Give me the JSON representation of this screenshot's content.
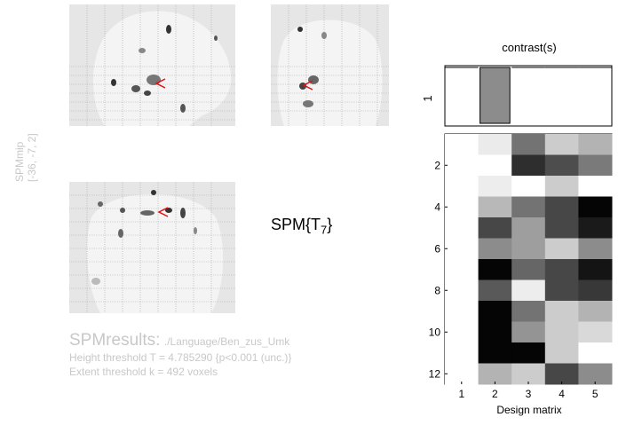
{
  "mip": {
    "side_label": "SPMmip",
    "coords_label": "[-36, -7, 2]"
  },
  "stat_label": {
    "prefix": "SPM{T",
    "subscript": "7",
    "suffix": "}"
  },
  "results": {
    "title": "SPMresults:",
    "path": "./Language/Ben_zus_Umk",
    "height_threshold": "Height threshold T = 4.785290  {p<0.001 (unc.)}",
    "extent_threshold": "Extent threshold k = 492 voxels"
  },
  "contrast": {
    "title": "contrast(s)",
    "row_label": "1",
    "weights": [
      0,
      -1,
      0,
      0,
      0
    ]
  },
  "design_matrix": {
    "xlabel": "Design matrix",
    "x_ticks": [
      "1",
      "2",
      "3",
      "4",
      "5"
    ],
    "y_ticks": [
      "2",
      "4",
      "6",
      "8",
      "10",
      "12"
    ],
    "values": [
      [
        1.0,
        0.92,
        0.45,
        0.8,
        0.7
      ],
      [
        1.0,
        1.0,
        0.18,
        0.3,
        0.48
      ],
      [
        1.0,
        0.93,
        1.0,
        0.8,
        1.0
      ],
      [
        1.0,
        0.72,
        0.45,
        0.28,
        0.02
      ],
      [
        1.0,
        0.28,
        0.62,
        0.28,
        0.1
      ],
      [
        1.0,
        0.55,
        0.62,
        0.8,
        0.55
      ],
      [
        1.0,
        0.02,
        0.4,
        0.28,
        0.08
      ],
      [
        1.0,
        0.35,
        0.93,
        0.28,
        0.22
      ],
      [
        1.0,
        0.02,
        0.45,
        0.8,
        0.7
      ],
      [
        1.0,
        0.02,
        0.58,
        0.8,
        0.85
      ],
      [
        1.0,
        0.02,
        0.02,
        0.8,
        1.0
      ],
      [
        1.0,
        0.7,
        0.8,
        0.28,
        0.55
      ]
    ]
  }
}
